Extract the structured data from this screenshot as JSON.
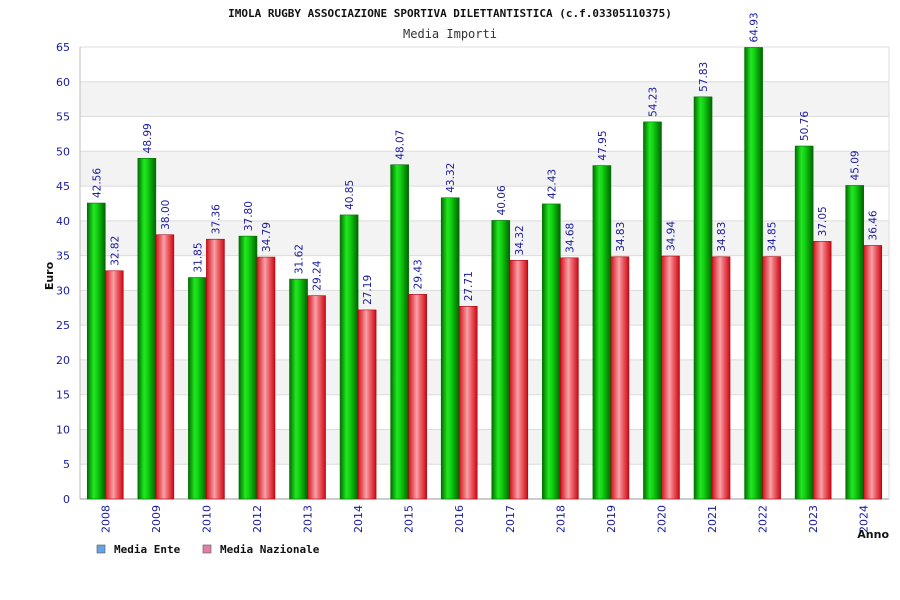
{
  "chart_data": {
    "type": "bar",
    "title": "IMOLA RUGBY ASSOCIAZIONE SPORTIVA DILETTANTISTICA (c.f.03305110375)",
    "subtitle": "Media Importi",
    "xlabel": "Anno",
    "ylabel": "Euro",
    "ylim": [
      0,
      65
    ],
    "yticks": [
      0,
      5,
      10,
      15,
      20,
      25,
      30,
      35,
      40,
      45,
      50,
      55,
      60,
      65
    ],
    "categories": [
      "2008",
      "2009",
      "2010",
      "2012",
      "2013",
      "2014",
      "2015",
      "2016",
      "2017",
      "2018",
      "2019",
      "2020",
      "2021",
      "2022",
      "2023",
      "2024"
    ],
    "series": [
      {
        "name": "Media Ente",
        "values": [
          42.56,
          48.99,
          31.85,
          37.8,
          31.62,
          40.85,
          48.07,
          43.32,
          40.06,
          42.43,
          47.95,
          54.23,
          57.83,
          64.93,
          50.76,
          45.09
        ],
        "labels": [
          "42.56",
          "48.99",
          "31.85",
          "37.80",
          "31.62",
          "40.85",
          "48.07",
          "43.32",
          "40.06",
          "42.43",
          "47.95",
          "54.23",
          "57.83",
          "64.93",
          "50.76",
          "45.09"
        ]
      },
      {
        "name": "Media Nazionale",
        "values": [
          32.82,
          38.0,
          37.36,
          34.79,
          29.24,
          27.19,
          29.43,
          27.71,
          34.32,
          34.68,
          34.83,
          34.94,
          34.83,
          34.85,
          37.05,
          36.46
        ],
        "labels": [
          "32.82",
          "38.00",
          "37.36",
          "34.79",
          "29.24",
          "27.19",
          "29.43",
          "27.71",
          "34.32",
          "34.68",
          "34.83",
          "34.94",
          "34.83",
          "34.85",
          "37.05",
          "36.46"
        ]
      }
    ],
    "legend_position": "bottom-left",
    "grid": true,
    "legend_colors": [
      "#66a3e0",
      "#e27fa8"
    ],
    "bar_colors": [
      "#00b400",
      "#e81e2a"
    ],
    "text_color": "#1a1aa0"
  }
}
